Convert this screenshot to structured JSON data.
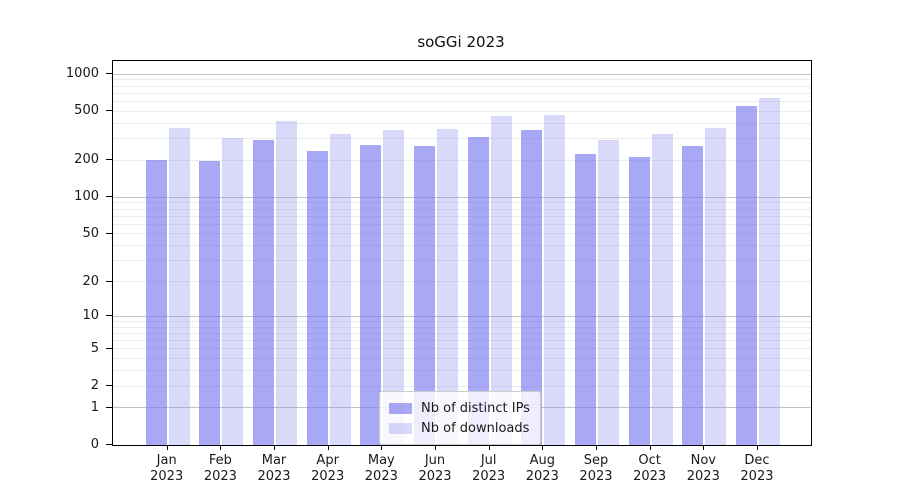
{
  "chart_data": {
    "type": "bar",
    "title": "soGGi 2023",
    "categories": [
      "Jan",
      "Feb",
      "Mar",
      "Apr",
      "May",
      "Jun",
      "Jul",
      "Aug",
      "Sep",
      "Oct",
      "Nov",
      "Dec"
    ],
    "category_year": "2023",
    "series": [
      {
        "name": "Nb of distinct IPs",
        "color": "rgba(121,121,240,0.65)",
        "values": [
          200,
          197,
          292,
          238,
          266,
          263,
          308,
          349,
          224,
          214,
          260,
          547
        ]
      },
      {
        "name": "Nb of downloads",
        "color": "rgba(146,146,238,0.35)",
        "values": [
          363,
          306,
          420,
          327,
          350,
          356,
          455,
          464,
          291,
          328,
          367,
          644
        ]
      }
    ],
    "xlabel": "",
    "ylabel": "",
    "yscale": "log1p",
    "yticks": [
      0,
      1,
      2,
      5,
      10,
      20,
      50,
      100,
      200,
      500,
      1000
    ],
    "ylim": [
      0,
      1275
    ],
    "grid": {
      "on": true,
      "major_color": "#c3c3c3",
      "minor_color": "#ececec",
      "minor_ticks": [
        2,
        3,
        4,
        5,
        6,
        7,
        8,
        9,
        20,
        30,
        40,
        50,
        60,
        70,
        80,
        90,
        200,
        300,
        400,
        500,
        600,
        700,
        800,
        900
      ],
      "major_ticks": [
        1,
        10,
        100,
        1000
      ]
    },
    "legend": {
      "position": "lower center"
    },
    "axis_color": "#000000",
    "background_color": "#ffffff"
  }
}
